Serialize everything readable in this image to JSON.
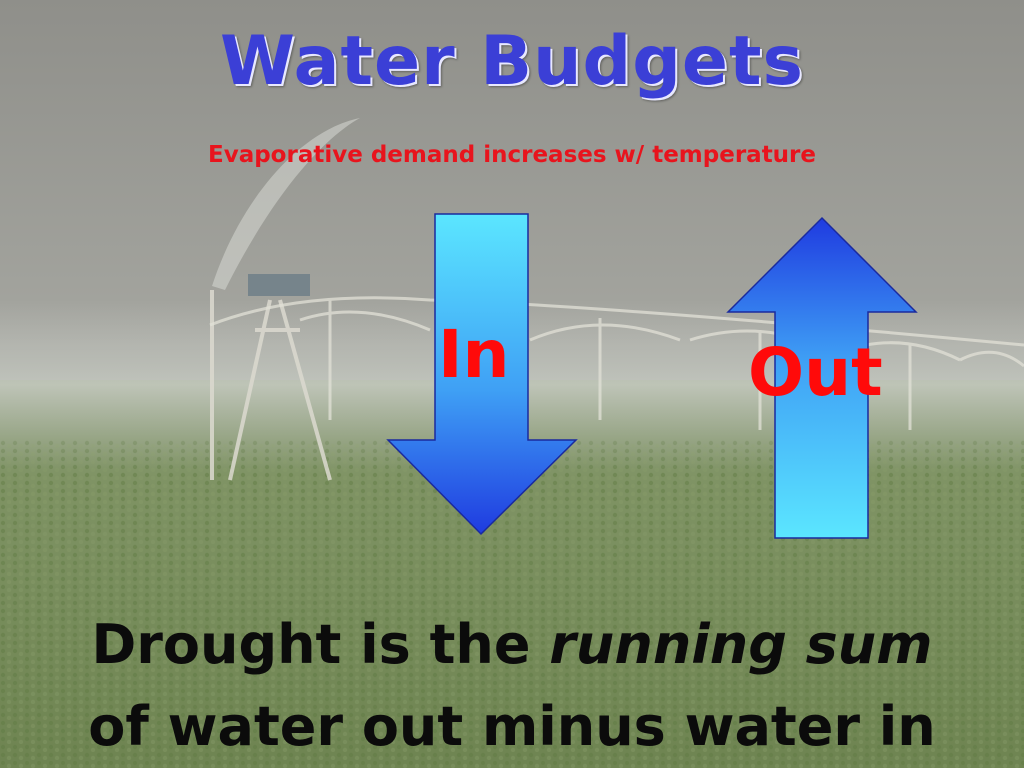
{
  "slide": {
    "title": "Water Budgets",
    "subtitle": "Evaporative demand increases w/ temperature",
    "in_arrow_label": "In",
    "out_arrow_label": "Out",
    "caption": {
      "line1_prefix": "Drought is the ",
      "line1_emphasis": "running sum",
      "line2": "of water out minus water in"
    }
  },
  "colors": {
    "title": "#3b3fd6",
    "subtitle": "#e8141d",
    "arrow_label": "#ff0a0a",
    "arrow_light": "#5be6ff",
    "arrow_dark": "#1f3be0"
  },
  "background_scene": "center-pivot irrigation sprinkler over green field, hazy sky"
}
